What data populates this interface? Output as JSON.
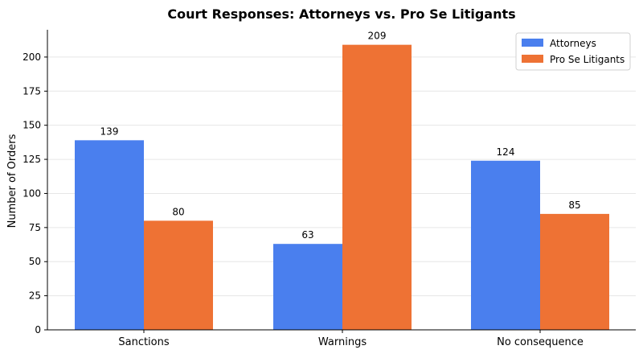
{
  "chart_data": {
    "type": "bar",
    "title": "Court Responses: Attorneys vs. Pro Se Litigants",
    "xlabel": "",
    "ylabel": "Number of Orders",
    "categories": [
      "Sanctions",
      "Warnings",
      "No consequence"
    ],
    "series": [
      {
        "name": "Attorneys",
        "values": [
          139,
          63,
          124
        ],
        "color": "#4a7fee"
      },
      {
        "name": "Pro Se Litigants",
        "values": [
          80,
          209,
          85
        ],
        "color": "#ee7234"
      }
    ],
    "ylim": [
      0,
      220
    ],
    "yticks": [
      0,
      25,
      50,
      75,
      100,
      125,
      150,
      175,
      200
    ],
    "grid": "y-axis",
    "legend": "top-right"
  }
}
